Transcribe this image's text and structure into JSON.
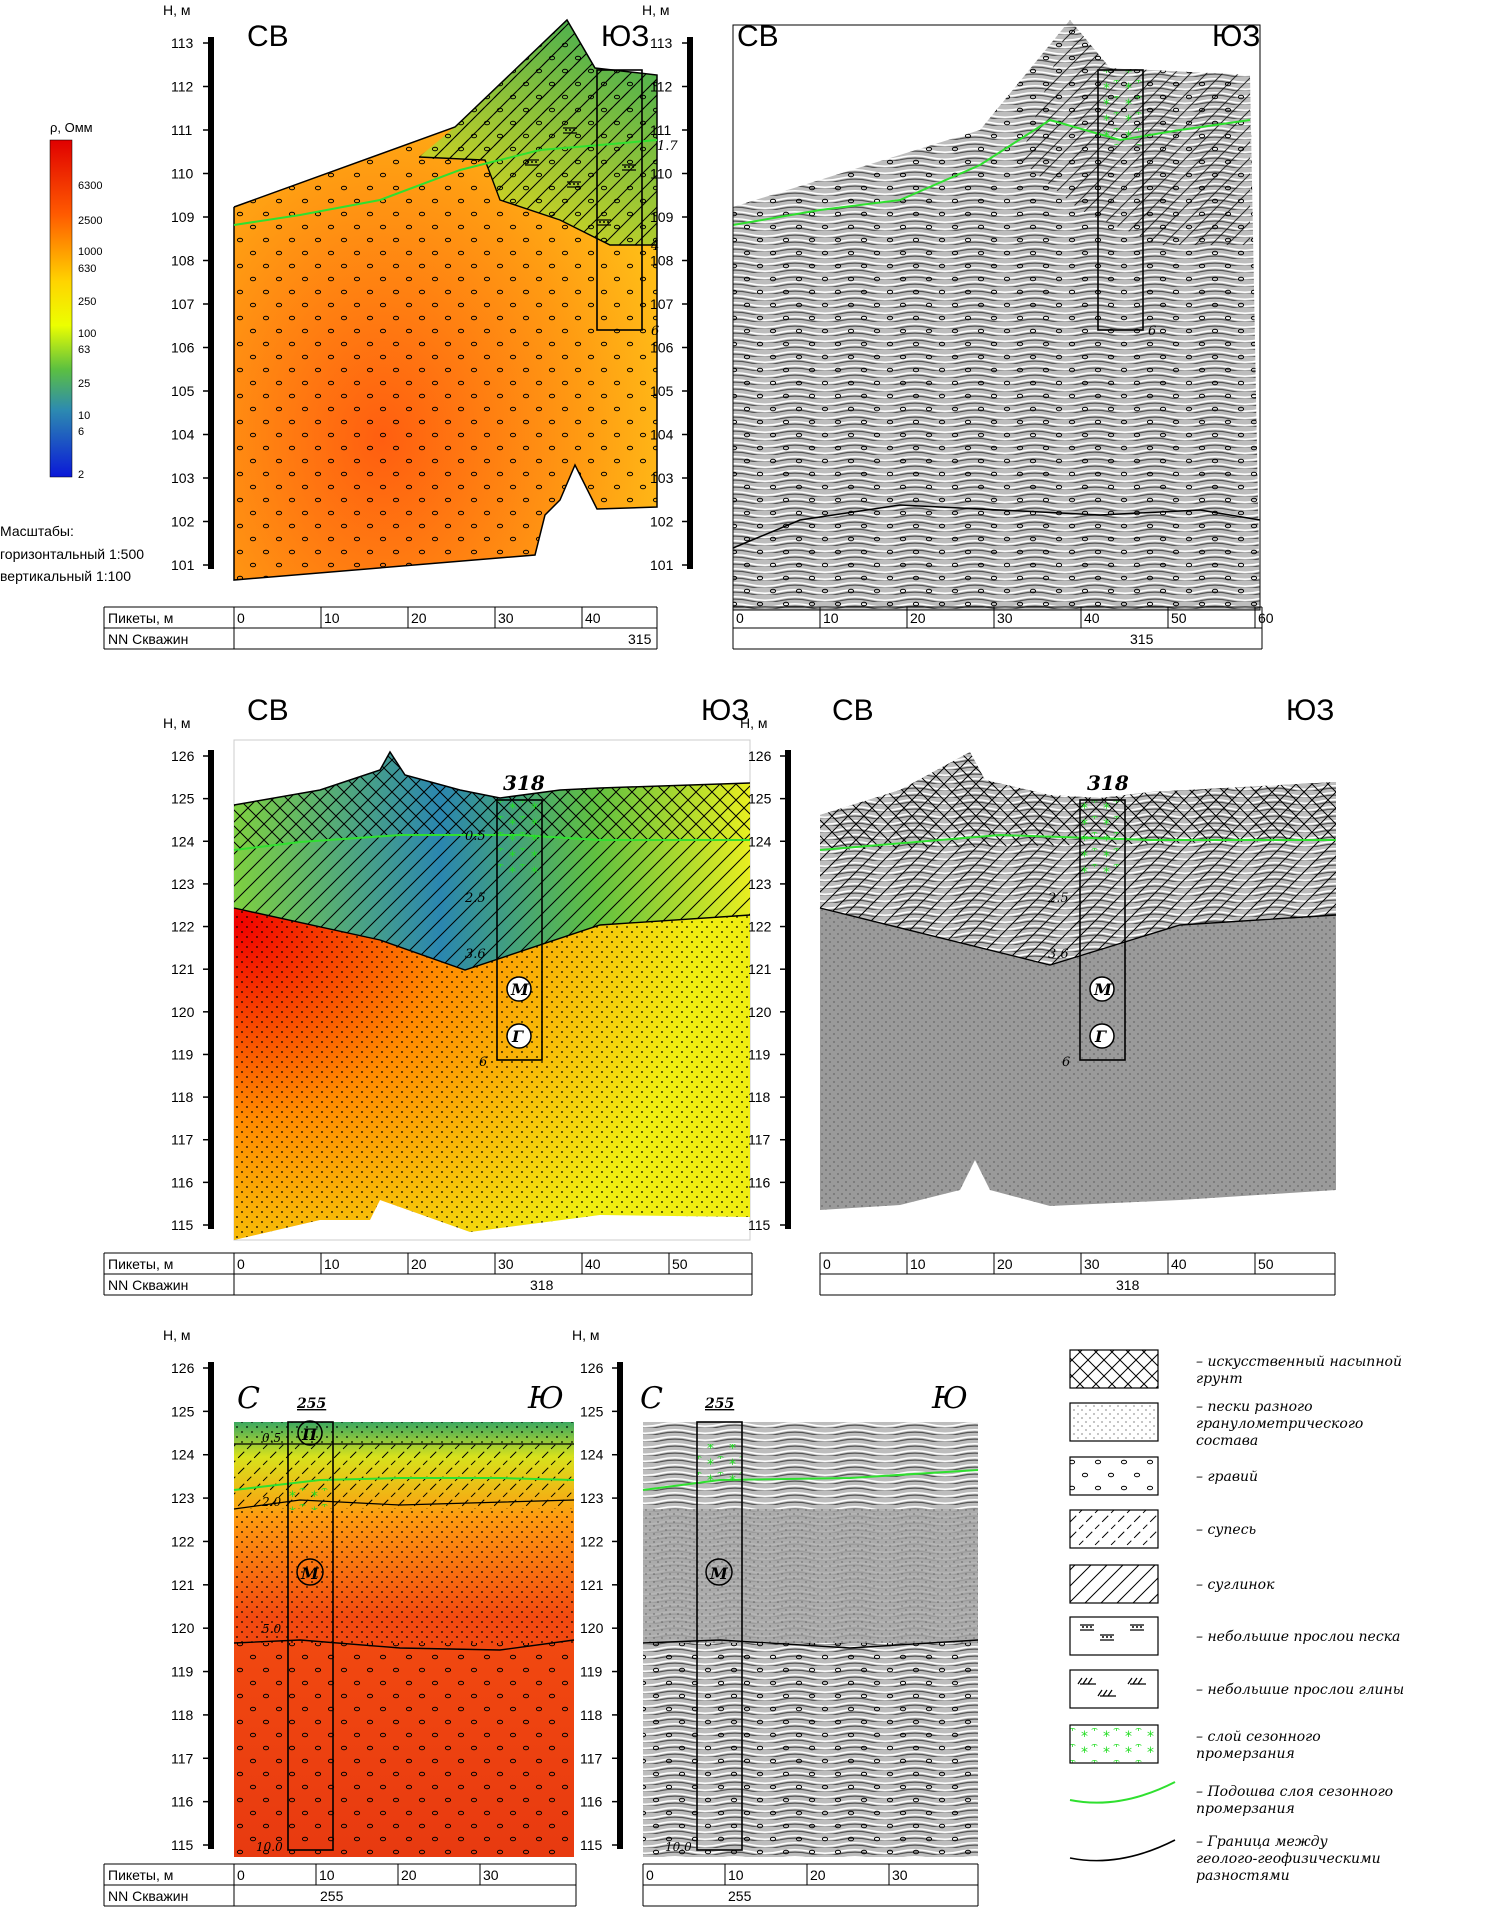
{
  "units": {
    "height": "H, м",
    "resistivity": "ρ, Омм"
  },
  "scale_note": {
    "title": "Масштабы:",
    "horizontal": "горизонтальный 1:500",
    "vertical": "вертикальный 1:100"
  },
  "colorbar": {
    "labels": [
      "6300",
      "2500",
      "1000",
      "630",
      "250",
      "100",
      "63",
      "25",
      "10",
      "6",
      "2"
    ],
    "colors": [
      "#ff0000",
      "#ff7a00",
      "#ffd400",
      "#f2ff00",
      "#80d030",
      "#3aa055",
      "#2a70c8",
      "#1020e0"
    ]
  },
  "table_labels": {
    "pickets": "Пикеты, м",
    "wells": "NN Скважин"
  },
  "sections": [
    {
      "name": "315",
      "dir_left": "СВ",
      "dir_right": "ЮЗ",
      "well": "315",
      "height_ticks": [
        "113",
        "112",
        "111",
        "110",
        "109",
        "108",
        "107",
        "106",
        "105",
        "104",
        "103",
        "102",
        "101"
      ],
      "pickets_left": [
        "0",
        "10",
        "20",
        "30",
        "40"
      ],
      "pickets_right": [
        "0",
        "10",
        "20",
        "30",
        "40",
        "50",
        "60"
      ],
      "depth_marks": [
        "1.7",
        "4",
        "6"
      ]
    },
    {
      "name": "318",
      "dir_left": "СВ",
      "dir_right": "ЮЗ",
      "well": "318",
      "height_ticks": [
        "126",
        "125",
        "124",
        "123",
        "122",
        "121",
        "120",
        "119",
        "118",
        "117",
        "116",
        "115"
      ],
      "pickets_left": [
        "0",
        "10",
        "20",
        "30",
        "40",
        "50"
      ],
      "pickets_right": [
        "0",
        "10",
        "20",
        "30",
        "40",
        "50"
      ],
      "depth_marks": [
        "0.5",
        "2.5",
        "3.6",
        "6"
      ],
      "well_symbols": [
        "М",
        "Г"
      ]
    },
    {
      "name": "255",
      "dir_left": "С",
      "dir_right": "Ю",
      "well": "255",
      "height_ticks": [
        "126",
        "125",
        "124",
        "123",
        "122",
        "121",
        "120",
        "119",
        "118",
        "117",
        "116",
        "115"
      ],
      "pickets_left": [
        "0",
        "10",
        "20",
        "30"
      ],
      "pickets_right": [
        "0",
        "10",
        "20",
        "30"
      ],
      "depth_marks": [
        "0.5",
        "2.0",
        "5.0",
        "10.0"
      ],
      "well_symbols": [
        "П",
        "М"
      ]
    }
  ],
  "legend": [
    {
      "icon": "crosshatch",
      "text": "– искусственный насыпной грунт"
    },
    {
      "icon": "sand-dots",
      "text": "– пески разного гранулометрического состава"
    },
    {
      "icon": "gravel",
      "text": "– гравий"
    },
    {
      "icon": "sandy-loam",
      "text": "– супесь"
    },
    {
      "icon": "loam",
      "text": "– суглинок"
    },
    {
      "icon": "sand-lenses",
      "text": "– небольшие прослои песка"
    },
    {
      "icon": "clay-lenses",
      "text": "– небольшие прослои глины"
    },
    {
      "icon": "frozen",
      "text": "– слой сезонного промерзания"
    },
    {
      "icon": "green-line",
      "text": "– Подошва слоя сезонного промерзания"
    },
    {
      "icon": "black-line",
      "text": "– Граница между геолого-геофизическими разностями"
    }
  ]
}
